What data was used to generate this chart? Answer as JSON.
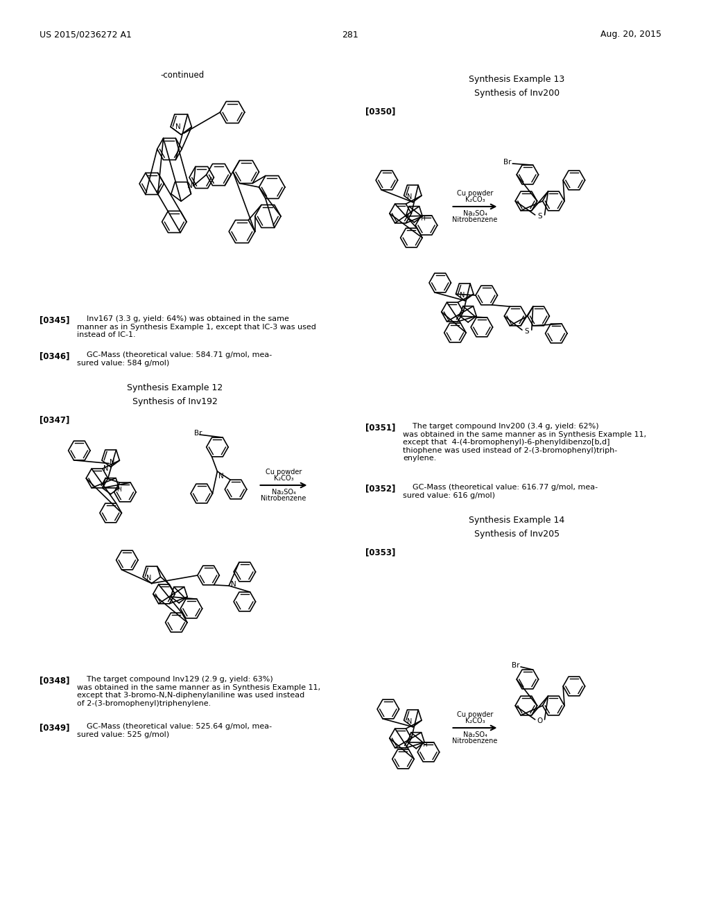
{
  "background_color": "#ffffff",
  "page_header_left": "US 2015/0236272 A1",
  "page_header_right": "Aug. 20, 2015",
  "page_number": "281",
  "continued_label": "-continued",
  "synthesis_ex12_title": "Synthesis Example 12",
  "synthesis_ex12_subtitle": "Synthesis of Inv192",
  "synthesis_ex13_title": "Synthesis Example 13",
  "synthesis_ex13_subtitle": "Synthesis of Inv200",
  "synthesis_ex14_title": "Synthesis Example 14",
  "synthesis_ex14_subtitle": "Synthesis of Inv205",
  "para345_label": "[0345]",
  "para346_label": "[0346]",
  "para347_label": "[0347]",
  "para348_label": "[0348]",
  "para349_label": "[0349]",
  "para350_label": "[0350]",
  "para351_label": "[0351]",
  "para352_label": "[0352]",
  "para353_label": "[0353]"
}
